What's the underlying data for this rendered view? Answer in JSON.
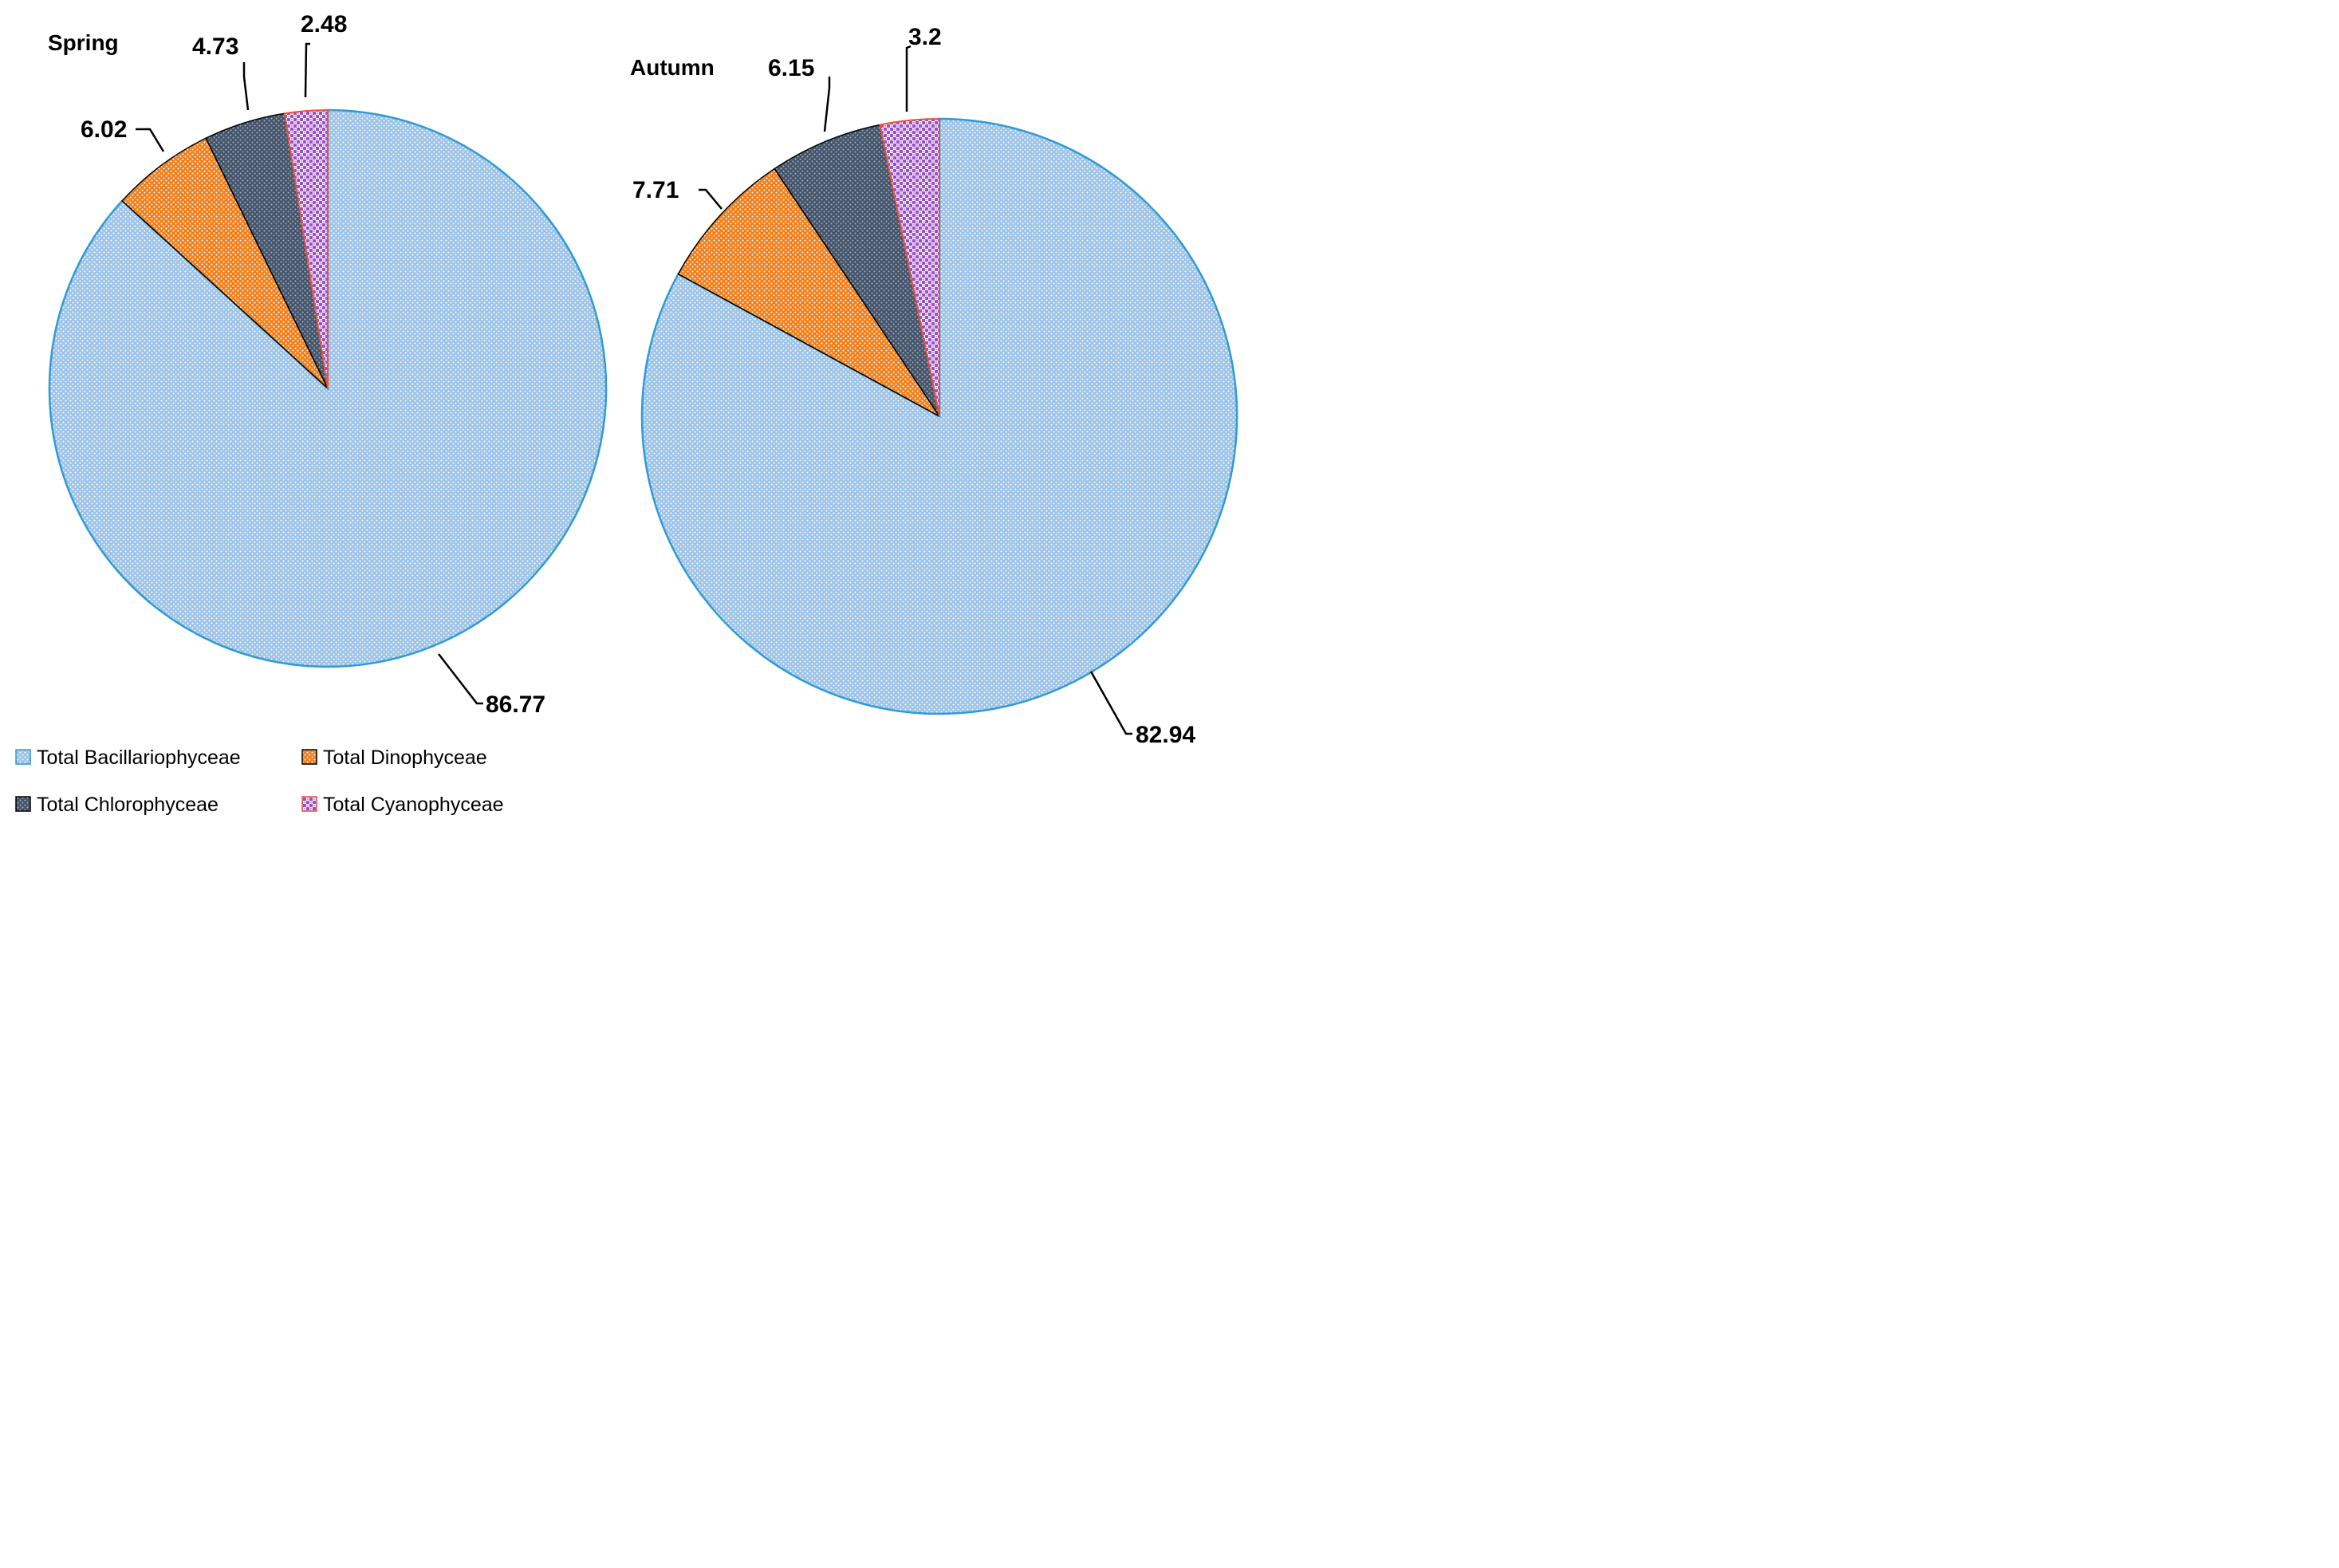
{
  "colors": {
    "bacillariophyceae": "#9dc3e6",
    "dinophyceae": "#f07f1d",
    "chlorophyceae": "#44546a",
    "cyanophyceae": "#9b4fc6",
    "outline_blue": "#2e9bd6",
    "outline_red": "#e8543c"
  },
  "legend": {
    "items": [
      {
        "label": "Total Bacillariophyceae",
        "icon": "dotted-blue-swatch"
      },
      {
        "label": "Total Dinophyceae",
        "icon": "dotted-orange-swatch"
      },
      {
        "label": "Total Chlorophyceae",
        "icon": "dotted-navy-swatch"
      },
      {
        "label": "Total Cyanophyceae",
        "icon": "checkered-purple-swatch"
      }
    ]
  },
  "chart_data": [
    {
      "type": "pie",
      "title": "Spring",
      "categories": [
        "Total Bacillariophyceae",
        "Total Dinophyceae",
        "Total Chlorophyceae",
        "Total Cyanophyceae"
      ],
      "values": [
        86.77,
        6.02,
        4.73,
        2.48
      ],
      "labels": [
        "86.77",
        "6.02",
        "4.73",
        "2.48"
      ]
    },
    {
      "type": "pie",
      "title": "Autumn",
      "categories": [
        "Total Bacillariophyceae",
        "Total Dinophyceae",
        "Total Chlorophyceae",
        "Total Cyanophyceae"
      ],
      "values": [
        82.94,
        7.71,
        6.15,
        3.2
      ],
      "labels": [
        "82.94",
        "7.71",
        "6.15",
        "3.2"
      ]
    }
  ]
}
